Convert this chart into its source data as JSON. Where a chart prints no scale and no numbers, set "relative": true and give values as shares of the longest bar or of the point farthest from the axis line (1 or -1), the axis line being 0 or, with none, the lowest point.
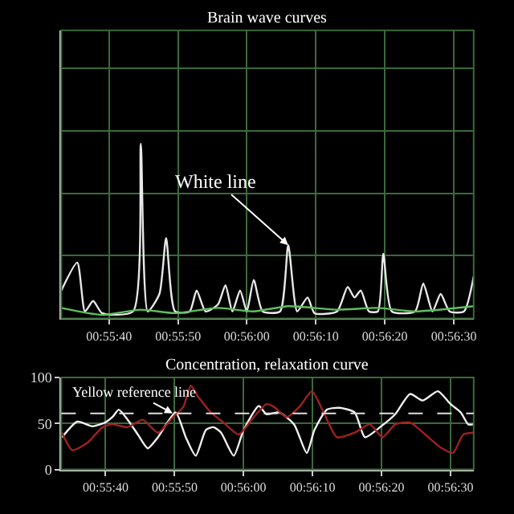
{
  "chart_data": [
    {
      "type": "line",
      "title": "Brain wave curves",
      "relative": true,
      "tick_labels": "x",
      "grid": true,
      "marker": "none",
      "xlim": [
        0.92586,
        0.94247
      ],
      "xticks": [
        {
          "value": 0.92778,
          "label": "00:55:40"
        },
        {
          "value": 0.93056,
          "label": "00:55:50"
        },
        {
          "value": 0.93333,
          "label": "00:56:00"
        },
        {
          "value": 0.93611,
          "label": "00:56:10"
        },
        {
          "value": 0.93889,
          "label": "00:56:20"
        },
        {
          "value": 0.94167,
          "label": "00:56:30"
        }
      ],
      "annotations": [
        {
          "text": "White line",
          "x": 0.935,
          "y": 0.42
        }
      ],
      "series": [
        {
          "color": "#e8e8e8",
          "x": [
            0.92586,
            0.9265,
            0.92681,
            0.92714,
            0.9275,
            0.92875,
            0.92906,
            0.92934,
            0.92981,
            0.93008,
            0.93044,
            0.93103,
            0.93131,
            0.93167,
            0.93217,
            0.93247,
            0.93275,
            0.93306,
            0.93333,
            0.93361,
            0.93397,
            0.93467,
            0.935,
            0.93536,
            0.93578,
            0.93606,
            0.93697,
            0.93739,
            0.93767,
            0.93792,
            0.93825,
            0.93861,
            0.93883,
            0.93917,
            0.94011,
            0.94044,
            0.94081,
            0.94114,
            0.9415,
            0.94208,
            0.94247
          ],
          "values": [
            0.16,
            0.32,
            0.04,
            0.1,
            0.03,
            0.04,
            1.0,
            0.04,
            0.14,
            0.46,
            0.04,
            0.04,
            0.16,
            0.04,
            0.08,
            0.19,
            0.04,
            0.16,
            0.04,
            0.22,
            0.04,
            0.04,
            0.42,
            0.04,
            0.12,
            0.03,
            0.04,
            0.18,
            0.12,
            0.16,
            0.04,
            0.04,
            0.37,
            0.04,
            0.04,
            0.2,
            0.04,
            0.14,
            0.04,
            0.04,
            0.24
          ]
        },
        {
          "color": "#5fbf5f",
          "x": [
            0.92586,
            0.9275,
            0.92906,
            0.93044,
            0.93217,
            0.93361,
            0.935,
            0.93697,
            0.93861,
            0.94011,
            0.94247
          ],
          "values": [
            0.06,
            0.02,
            0.05,
            0.03,
            0.06,
            0.04,
            0.07,
            0.05,
            0.06,
            0.04,
            0.07
          ]
        }
      ]
    },
    {
      "type": "line",
      "title": "Concentration, relaxation curve",
      "grid": true,
      "marker": "none",
      "xlim": [
        0.926,
        0.9426
      ],
      "ylim": [
        0,
        100
      ],
      "yticks": [
        0,
        50,
        100
      ],
      "xticks": [
        {
          "value": 0.92778,
          "label": "00:55:40"
        },
        {
          "value": 0.93056,
          "label": "00:55:50"
        },
        {
          "value": 0.93333,
          "label": "00:56:00"
        },
        {
          "value": 0.93611,
          "label": "00:56:10"
        },
        {
          "value": 0.93889,
          "label": "00:56:20"
        },
        {
          "value": 0.94167,
          "label": "00:56:30"
        }
      ],
      "ref_lines": [
        {
          "axis": "y",
          "value": 61,
          "label": "Yellow reference line",
          "color": "#e0e0e0",
          "line_style": "dashed"
        }
      ],
      "series": [
        {
          "color": "#f0f0f0",
          "x": [
            0.92603,
            0.92664,
            0.92725,
            0.92776,
            0.92806,
            0.92831,
            0.92867,
            0.92908,
            0.92948,
            0.92989,
            0.9306,
            0.93101,
            0.93141,
            0.93182,
            0.93212,
            0.93243,
            0.93294,
            0.93334,
            0.93395,
            0.93426,
            0.93477,
            0.93537,
            0.93588,
            0.93619,
            0.93669,
            0.9372,
            0.93781,
            0.93822,
            0.93883,
            0.93944,
            0.94004,
            0.94055,
            0.94116,
            0.94167,
            0.94208,
            0.94238,
            0.94258
          ],
          "values": [
            35,
            52,
            47,
            51,
            57,
            65,
            54,
            38,
            23,
            35,
            62,
            35,
            15,
            43,
            46,
            40,
            15,
            43,
            69,
            60,
            62,
            49,
            18,
            43,
            65,
            67,
            62,
            35,
            46,
            60,
            82,
            75,
            85,
            71,
            62,
            49,
            49
          ]
        },
        {
          "color": "#a02020",
          "x": [
            0.92603,
            0.92644,
            0.92705,
            0.92766,
            0.92806,
            0.92867,
            0.92928,
            0.92989,
            0.9305,
            0.93091,
            0.93121,
            0.93151,
            0.93202,
            0.93253,
            0.93314,
            0.93375,
            0.93426,
            0.93456,
            0.93507,
            0.93558,
            0.93609,
            0.93659,
            0.9371,
            0.93781,
            0.93842,
            0.93893,
            0.93944,
            0.94004,
            0.94065,
            0.94126,
            0.94177,
            0.94218,
            0.94258
          ],
          "values": [
            40,
            21,
            29,
            46,
            49,
            46,
            54,
            40,
            57,
            68,
            91,
            79,
            62,
            51,
            38,
            57,
            71,
            68,
            57,
            68,
            85,
            60,
            35,
            40,
            49,
            35,
            49,
            51,
            38,
            24,
            18,
            38,
            40
          ]
        }
      ]
    }
  ]
}
